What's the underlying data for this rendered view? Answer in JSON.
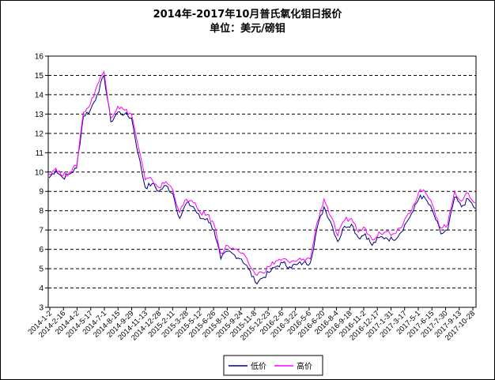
{
  "chart_data": {
    "type": "line",
    "title": "2014年-2017年10月普氏氧化钼日报价",
    "subtitle": "单位：美元/磅钼",
    "xlabel": "",
    "ylabel": "",
    "ylim": [
      3,
      16
    ],
    "yticks": [
      "3",
      "4",
      "5",
      "6",
      "7",
      "8",
      "9",
      "10",
      "11",
      "12",
      "13",
      "14",
      "15",
      "16"
    ],
    "grid": "horizontal-dashed",
    "legend_position": "bottom",
    "x_tick_labels": [
      "2014-1-2",
      "2014-2-16",
      "2014-4-2",
      "2014-5-17",
      "2014-7-1",
      "2014-8-15",
      "2014-9-29",
      "2014-11-13",
      "2014-12-28",
      "2015-2-11",
      "2015-3-28",
      "2015-5-12",
      "2015-6-26",
      "2015-8-10",
      "2015-9-24",
      "2015-11-8",
      "2015-12-23",
      "2016-2-6",
      "2016-3-22",
      "2016-5-6",
      "2016-6-20",
      "2016-8-4",
      "2016-9-18",
      "2016-11-2",
      "2016-12-17",
      "2017-1-31",
      "2017-3-17",
      "2017-5-1",
      "2017-6-15",
      "2017-7-30",
      "2017-9-13",
      "2017-10-28"
    ],
    "x": [
      "2014-1-2",
      "2014-1-25",
      "2014-2-16",
      "2014-3-10",
      "2014-4-2",
      "2014-4-25",
      "2014-5-17",
      "2014-6-9",
      "2014-7-1",
      "2014-7-23",
      "2014-8-15",
      "2014-9-7",
      "2014-9-29",
      "2014-10-22",
      "2014-11-13",
      "2014-12-6",
      "2014-12-28",
      "2015-1-20",
      "2015-2-11",
      "2015-3-6",
      "2015-3-28",
      "2015-4-20",
      "2015-5-12",
      "2015-6-3",
      "2015-6-26",
      "2015-7-19",
      "2015-8-10",
      "2015-9-2",
      "2015-9-24",
      "2015-10-17",
      "2015-11-8",
      "2015-12-1",
      "2015-12-23",
      "2016-1-15",
      "2016-2-6",
      "2016-2-29",
      "2016-3-22",
      "2016-4-14",
      "2016-5-6",
      "2016-5-29",
      "2016-6-20",
      "2016-7-13",
      "2016-8-4",
      "2016-8-27",
      "2016-9-18",
      "2016-10-11",
      "2016-11-2",
      "2016-11-25",
      "2016-12-17",
      "2017-1-9",
      "2017-1-31",
      "2017-2-23",
      "2017-3-17",
      "2017-4-9",
      "2017-5-1",
      "2017-5-24",
      "2017-6-15",
      "2017-7-8",
      "2017-7-30",
      "2017-8-22",
      "2017-9-13",
      "2017-10-6",
      "2017-10-28"
    ],
    "series": [
      {
        "name": "低价",
        "color": "#000080",
        "values": [
          9.7,
          10.1,
          9.7,
          9.9,
          10.2,
          12.9,
          13.2,
          14.0,
          15.0,
          12.6,
          13.1,
          13.0,
          12.8,
          10.9,
          9.2,
          9.4,
          9.0,
          9.3,
          8.9,
          7.6,
          8.4,
          8.2,
          7.6,
          7.6,
          7.0,
          5.5,
          5.9,
          5.7,
          5.5,
          5.0,
          4.3,
          4.5,
          4.8,
          5.1,
          5.3,
          5.1,
          5.2,
          5.3,
          5.3,
          7.1,
          8.2,
          7.4,
          6.4,
          7.2,
          7.3,
          6.6,
          6.8,
          6.2,
          6.6,
          6.6,
          6.5,
          6.8,
          7.4,
          8.0,
          8.8,
          8.5,
          7.8,
          6.8,
          7.0,
          8.7,
          8.2,
          8.6,
          8.1
        ]
      },
      {
        "name": "高价",
        "color": "#FF00FF",
        "values": [
          9.9,
          10.2,
          9.8,
          10.0,
          10.3,
          13.1,
          13.5,
          14.5,
          15.2,
          12.8,
          13.4,
          13.2,
          13.0,
          11.3,
          9.6,
          9.6,
          9.2,
          9.5,
          9.1,
          7.9,
          8.6,
          8.4,
          7.9,
          7.8,
          7.3,
          5.8,
          6.2,
          6.0,
          5.8,
          5.3,
          4.7,
          4.8,
          5.1,
          5.4,
          5.5,
          5.3,
          5.4,
          5.5,
          5.5,
          7.4,
          8.6,
          7.7,
          6.7,
          7.5,
          7.6,
          6.9,
          7.1,
          6.5,
          6.9,
          6.9,
          6.8,
          7.1,
          7.7,
          8.3,
          9.1,
          8.8,
          8.1,
          7.1,
          7.3,
          9.0,
          8.5,
          8.9,
          8.4
        ]
      }
    ]
  }
}
